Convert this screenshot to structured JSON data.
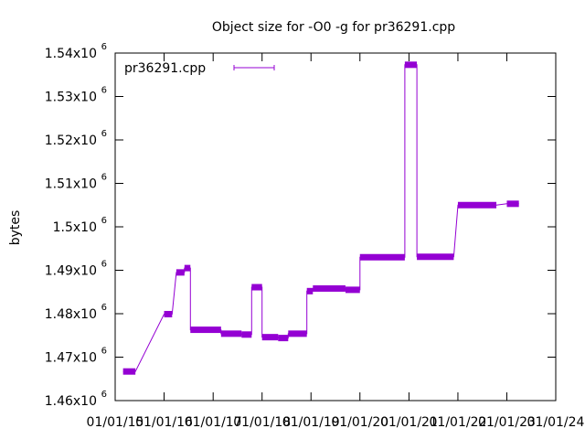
{
  "chart_data": {
    "type": "line",
    "title": "Object size for -O0 -g for pr36291.cpp",
    "xlabel": "",
    "ylabel": "bytes",
    "legend": {
      "label": "pr36291.cpp",
      "placement": "top-left"
    },
    "grid": false,
    "xlim": [
      "2015-01-01",
      "2024-01-01"
    ],
    "ylim": [
      1460000,
      1540000
    ],
    "x_ticks": [
      "01/01/15",
      "01/01/16",
      "01/01/17",
      "01/01/18",
      "01/01/19",
      "01/01/20",
      "01/01/21",
      "01/01/22",
      "01/01/23",
      "01/01/24"
    ],
    "y_ticks": [
      {
        "value": 1460000,
        "mantissa": "1.46x10",
        "exp": "6"
      },
      {
        "value": 1470000,
        "mantissa": "1.47x10",
        "exp": "6"
      },
      {
        "value": 1480000,
        "mantissa": "1.48x10",
        "exp": "6"
      },
      {
        "value": 1490000,
        "mantissa": "1.49x10",
        "exp": "6"
      },
      {
        "value": 1500000,
        "mantissa": "1.5x10",
        "exp": "6"
      },
      {
        "value": 1510000,
        "mantissa": "1.51x10",
        "exp": "6"
      },
      {
        "value": 1520000,
        "mantissa": "1.52x10",
        "exp": "6"
      },
      {
        "value": 1530000,
        "mantissa": "1.53x10",
        "exp": "6"
      },
      {
        "value": 1540000,
        "mantissa": "1.54x10",
        "exp": "6"
      }
    ],
    "series": [
      {
        "name": "pr36291.cpp",
        "color": "#9400d3",
        "segments": [
          {
            "x": [
              "2015-03-01",
              "2015-06-01"
            ],
            "y": 1466700
          },
          {
            "x": [
              "2016-01-01",
              "2016-03-01"
            ],
            "y": 1479900
          },
          {
            "x": [
              "2016-04-01",
              "2016-06-01"
            ],
            "y": 1489500
          },
          {
            "x": [
              "2016-06-01",
              "2016-07-15"
            ],
            "y": 1490500
          },
          {
            "x": [
              "2016-07-15",
              "2017-03-01"
            ],
            "y": 1476300
          },
          {
            "x": [
              "2017-03-01",
              "2017-08-01"
            ],
            "y": 1475400
          },
          {
            "x": [
              "2017-08-01",
              "2017-10-15"
            ],
            "y": 1475200
          },
          {
            "x": [
              "2017-10-15",
              "2018-01-01"
            ],
            "y": 1486100
          },
          {
            "x": [
              "2018-01-01",
              "2018-05-01"
            ],
            "y": 1474600
          },
          {
            "x": [
              "2018-05-01",
              "2018-07-15"
            ],
            "y": 1474400
          },
          {
            "x": [
              "2018-07-15",
              "2018-12-01"
            ],
            "y": 1475400
          },
          {
            "x": [
              "2018-12-01",
              "2019-01-15"
            ],
            "y": 1485200
          },
          {
            "x": [
              "2019-01-15",
              "2019-09-15"
            ],
            "y": 1485800
          },
          {
            "x": [
              "2019-09-15",
              "2020-01-01"
            ],
            "y": 1485500
          },
          {
            "x": [
              "2020-01-01",
              "2020-12-01"
            ],
            "y": 1493000
          },
          {
            "x": [
              "2020-12-01",
              "2021-03-01"
            ],
            "y": 1537300
          },
          {
            "x": [
              "2021-03-01",
              "2021-12-01"
            ],
            "y": 1493100
          },
          {
            "x": [
              "2022-01-01",
              "2022-10-15"
            ],
            "y": 1505000
          },
          {
            "x": [
              "2023-01-01",
              "2023-04-01"
            ],
            "y": 1505300
          }
        ]
      }
    ]
  }
}
